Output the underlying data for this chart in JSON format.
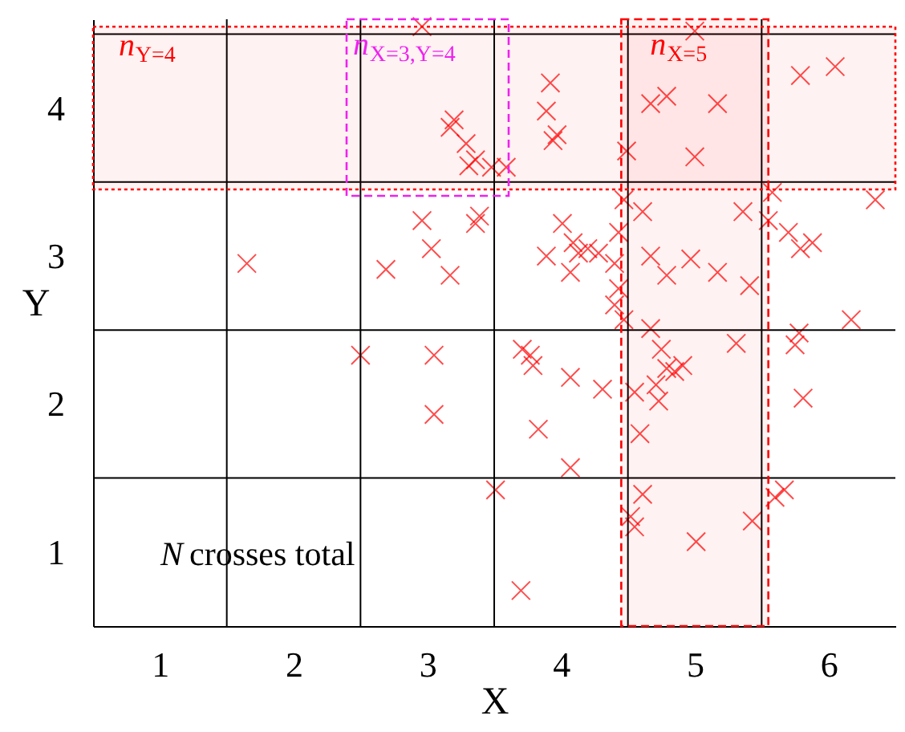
{
  "chart_data": {
    "type": "scatter",
    "xlabel": "X",
    "ylabel": "Y",
    "xlim": [
      0.5,
      6.5
    ],
    "ylim": [
      0.5,
      4.6
    ],
    "xticks": [
      1,
      2,
      3,
      4,
      5,
      6
    ],
    "yticks": [
      1,
      2,
      3,
      4
    ],
    "marker": "cross",
    "series": [
      {
        "color": "#ff0000",
        "x": [
          1.65,
          2.5,
          2.69,
          2.96,
          3.03,
          3.17,
          3.05,
          3.05,
          2.96,
          3.2,
          3.17,
          3.29,
          3.36,
          3.48,
          3.31,
          3.39,
          3.36,
          3.59,
          3.51,
          3.7,
          3.92,
          3.89,
          3.97,
          3.94,
          4.01,
          3.89,
          4.09,
          4.13,
          4.2,
          4.28,
          4.07,
          3.71,
          3.77,
          3.79,
          4.07,
          3.83,
          4.07,
          4.31,
          4.49,
          4.47,
          4.43,
          4.4,
          4.43,
          4.4,
          4.47,
          4.55,
          4.59,
          4.52,
          4.55,
          4.61,
          4.67,
          4.79,
          5.0,
          5.17,
          5.0,
          4.61,
          4.67,
          4.79,
          4.97,
          5.17,
          5.36,
          5.41,
          4.67,
          4.75,
          4.85,
          4.91,
          4.71,
          4.73,
          4.79,
          5.31,
          5.01,
          5.43,
          5.6,
          5.67,
          5.58,
          5.7,
          5.79,
          5.88,
          5.55,
          5.75,
          5.81,
          5.78,
          6.17,
          6.35,
          5.79,
          6.05
        ],
        "values": [
          2.95,
          2.33,
          2.91,
          3.24,
          3.05,
          2.87,
          2.33,
          1.93,
          4.55,
          3.92,
          3.87,
          3.76,
          3.65,
          3.6,
          3.61,
          3.27,
          3.22,
          3.6,
          1.42,
          0.74,
          4.17,
          3.98,
          3.82,
          3.78,
          3.22,
          3.0,
          3.09,
          3.02,
          3.05,
          3.02,
          2.89,
          2.37,
          2.33,
          2.26,
          2.18,
          1.83,
          1.57,
          2.1,
          3.71,
          3.38,
          3.16,
          2.95,
          2.78,
          2.67,
          2.57,
          2.08,
          1.8,
          1.24,
          1.17,
          1.39,
          4.03,
          4.08,
          4.52,
          4.03,
          3.67,
          3.3,
          3.0,
          2.87,
          2.98,
          2.89,
          3.3,
          2.8,
          2.51,
          2.37,
          2.22,
          2.26,
          2.13,
          2.02,
          2.24,
          2.41,
          1.07,
          1.21,
          1.37,
          1.42,
          3.43,
          3.16,
          3.05,
          3.09,
          3.24,
          2.4,
          2.04,
          2.48,
          2.57,
          3.38,
          4.22,
          4.28
        ]
      }
    ],
    "ref_lines": [
      {
        "axis": "x",
        "value": 1.5,
        "color": "#000000"
      },
      {
        "axis": "x",
        "value": 2.5,
        "color": "#000000"
      },
      {
        "axis": "x",
        "value": 3.5,
        "color": "#000000"
      },
      {
        "axis": "x",
        "value": 4.5,
        "color": "#000000"
      },
      {
        "axis": "x",
        "value": 5.5,
        "color": "#000000"
      },
      {
        "axis": "y",
        "value": 1.5,
        "color": "#000000"
      },
      {
        "axis": "y",
        "value": 2.5,
        "color": "#000000"
      },
      {
        "axis": "y",
        "value": 3.5,
        "color": "#000000"
      },
      {
        "axis": "y",
        "value": 4.5,
        "color": "#000000"
      }
    ],
    "bands": [
      {
        "axis": "y",
        "from": 3.45,
        "to": 4.55,
        "label": "n$_{Y=4}$",
        "color": "#ff0000"
      },
      {
        "axis": "x",
        "from": 4.45,
        "to": 5.55,
        "label": "n$_{X=5}$",
        "color": "#ff0000"
      }
    ],
    "annotations": [
      "n$_{X=3,Y=4}$",
      "N crosses total"
    ]
  }
}
